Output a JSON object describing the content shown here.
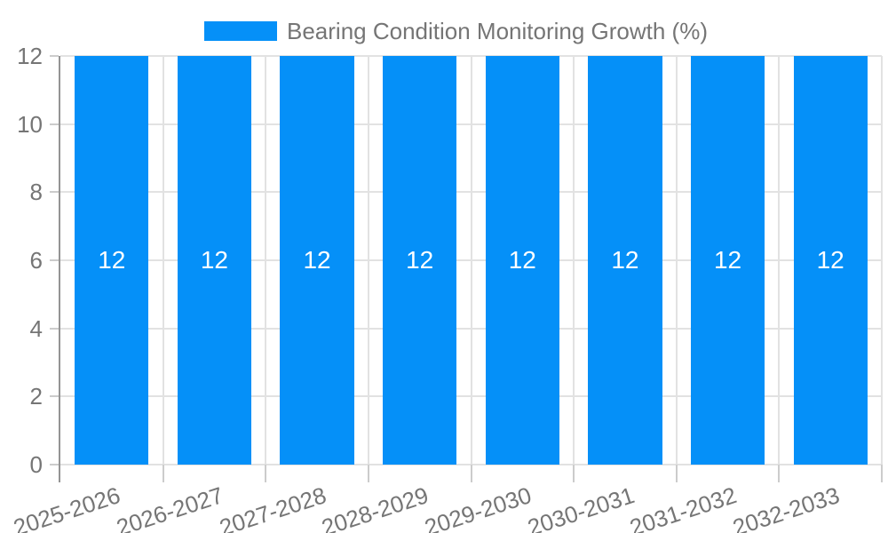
{
  "chart_data": {
    "type": "bar",
    "title": "Bearing Condition Monitoring Growth (%)",
    "categories": [
      "2025-2026",
      "2026-2027",
      "2027-2028",
      "2028-2029",
      "2029-2030",
      "2030-2031",
      "2031-2032",
      "2032-2033"
    ],
    "values": [
      12,
      12,
      12,
      12,
      12,
      12,
      12,
      12
    ],
    "yticks": [
      0,
      2,
      4,
      6,
      8,
      10,
      12
    ],
    "ylim": [
      0,
      12
    ],
    "xlabel": "",
    "ylabel": "",
    "grid": true,
    "legend_position": "top",
    "x_tick_rotation_deg": -18
  },
  "colors": {
    "bar": "#0590f8",
    "grid": "#e2e2e2",
    "tick": "#cccccc",
    "axis_line": "#949494",
    "tick_text": "#757575",
    "bar_value_text": "#ffffff",
    "background": "#ffffff"
  }
}
